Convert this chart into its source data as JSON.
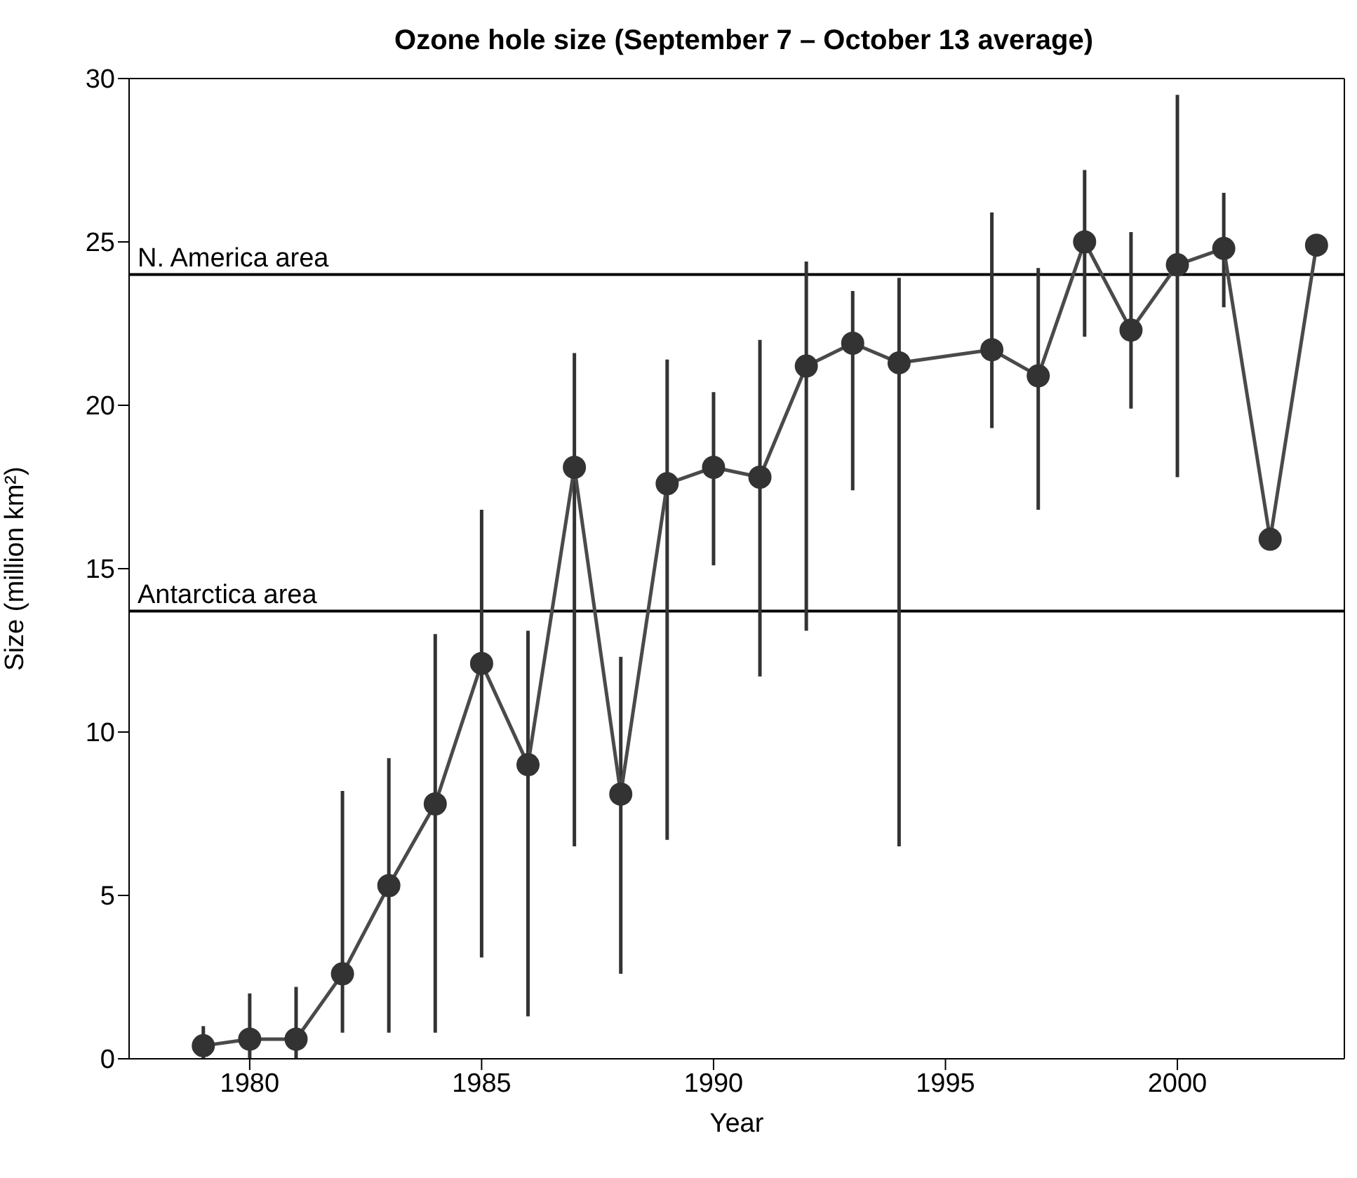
{
  "chart_data": {
    "type": "line",
    "title": "Ozone hole size (September 7 – October 13 average)",
    "xlabel": "Year",
    "ylabel": "Size (million km²)",
    "x": [
      1979,
      1980,
      1981,
      1982,
      1983,
      1984,
      1985,
      1986,
      1987,
      1988,
      1989,
      1990,
      1991,
      1992,
      1993,
      1994,
      1996,
      1997,
      1998,
      1999,
      2000,
      2001,
      2002,
      2003
    ],
    "series": [
      {
        "color": "#4a4a4a",
        "values": [
          0.4,
          0.6,
          0.6,
          2.6,
          5.3,
          7.8,
          12.1,
          9.0,
          18.1,
          8.1,
          17.6,
          18.1,
          17.8,
          21.2,
          21.9,
          21.3,
          21.7,
          20.9,
          25.0,
          22.3,
          24.3,
          24.8,
          15.9,
          24.9
        ],
        "errors": [
          [
            0,
            1.0
          ],
          [
            0,
            2.0
          ],
          [
            0,
            2.2
          ],
          [
            0.8,
            8.2
          ],
          [
            0.8,
            9.2
          ],
          [
            0.8,
            13.0
          ],
          [
            3.1,
            16.8
          ],
          [
            1.3,
            13.1
          ],
          [
            6.5,
            21.6
          ],
          [
            2.6,
            12.3
          ],
          [
            6.7,
            21.4
          ],
          [
            15.1,
            20.4
          ],
          [
            11.7,
            22.0
          ],
          [
            13.1,
            24.4
          ],
          [
            17.4,
            23.5
          ],
          [
            6.5,
            23.9
          ],
          [
            19.3,
            25.9
          ],
          [
            16.8,
            24.2
          ],
          [
            22.1,
            27.2
          ],
          [
            19.9,
            25.3
          ],
          [
            17.8,
            29.5
          ],
          [
            23.0,
            26.5
          ],
          null,
          null
        ]
      }
    ],
    "xlim": [
      1977.4,
      2003.6
    ],
    "xticks": [
      1980,
      1985,
      1990,
      1995,
      2000
    ],
    "ylim": [
      0,
      30
    ],
    "yticks": [
      0,
      5,
      10,
      15,
      20,
      25,
      30
    ],
    "ref_lines": [
      {
        "axis": "y",
        "value": 24,
        "label": "N. America area",
        "color": "#000000"
      },
      {
        "axis": "y",
        "value": 13.7,
        "label": "Antarctica area",
        "color": "#000000"
      }
    ],
    "marker": "circle"
  }
}
